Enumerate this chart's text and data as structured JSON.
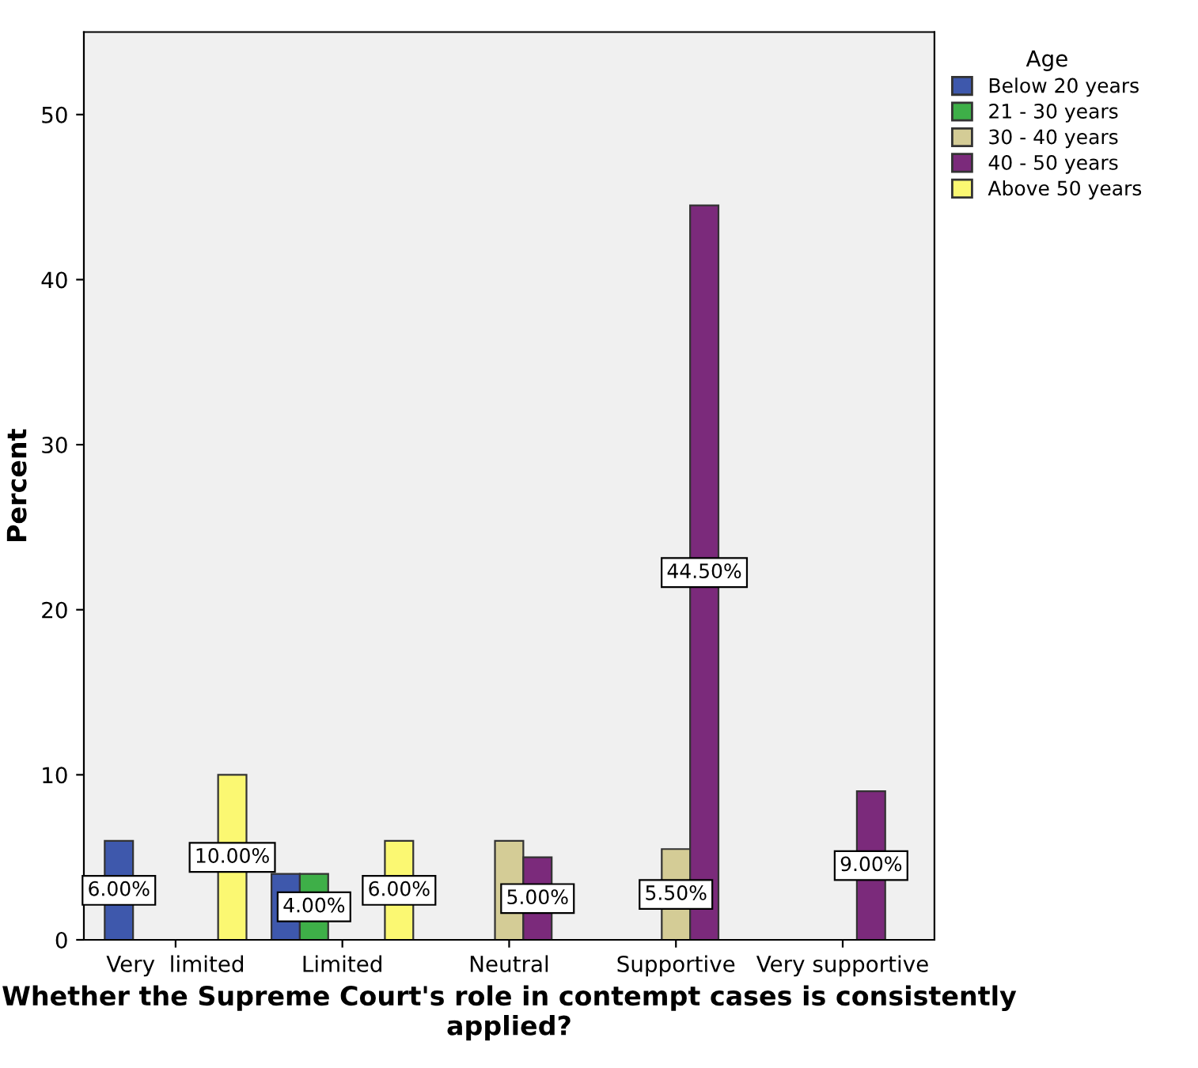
{
  "chart_data": {
    "type": "bar",
    "xlabel": "Whether the Supreme Court's role in contempt cases is consistently applied?",
    "ylabel": "Percent",
    "legend_title": "Age",
    "categories": [
      "Very  limited",
      "Limited",
      "Neutral",
      "Supportive",
      "Very supportive"
    ],
    "series": [
      {
        "name": "Below 20 years",
        "color": "#3e58ac",
        "values": [
          6,
          4,
          null,
          null,
          null
        ],
        "value_labels": [
          "6.00%",
          null,
          null,
          null,
          null
        ]
      },
      {
        "name": "21 - 30 years",
        "color": "#3eaf48",
        "values": [
          null,
          4,
          null,
          null,
          null
        ],
        "value_labels": [
          null,
          "4.00%",
          null,
          null,
          null
        ]
      },
      {
        "name": "30 - 40 years",
        "color": "#d4cc96",
        "values": [
          null,
          null,
          6,
          5.5,
          null
        ],
        "value_labels": [
          null,
          null,
          null,
          "5.50%",
          null
        ]
      },
      {
        "name": "40 - 50 years",
        "color": "#7b2a7b",
        "values": [
          null,
          null,
          5,
          44.5,
          9
        ],
        "value_labels": [
          null,
          null,
          "5.00%",
          "44.50%",
          "9.00%"
        ]
      },
      {
        "name": "Above 50 years",
        "color": "#fbf872",
        "values": [
          10,
          6,
          null,
          null,
          null
        ],
        "value_labels": [
          "10.00%",
          "6.00%",
          null,
          null,
          null
        ]
      }
    ],
    "ylim": [
      0,
      55
    ],
    "yticks": [
      0,
      10,
      20,
      30,
      40,
      50
    ],
    "legend": "top right"
  }
}
